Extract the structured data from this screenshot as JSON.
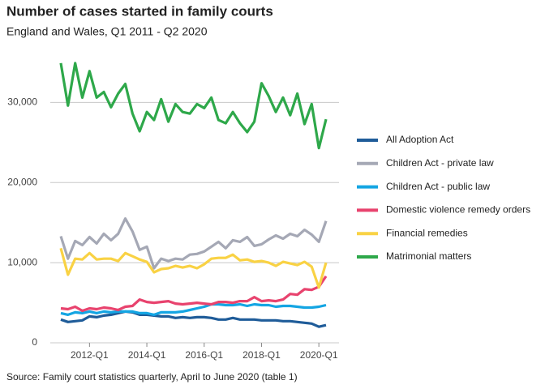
{
  "chart_data": {
    "type": "line",
    "title": "Number of cases started in family courts",
    "subtitle": "England and Wales, Q1 2011 - Q2 2020",
    "source": "Source: Family court statistics quarterly, April to June 2020 (table 1)",
    "categories": [
      null,
      null,
      null,
      null,
      "2012-Q1",
      null,
      null,
      null,
      null,
      null,
      null,
      null,
      "2014-Q1",
      null,
      null,
      null,
      null,
      null,
      null,
      null,
      "2016-Q1",
      null,
      null,
      null,
      null,
      null,
      null,
      null,
      "2018-Q1",
      null,
      null,
      null,
      null,
      null,
      null,
      null,
      "2020-Q1",
      null
    ],
    "ylim": [
      0,
      35500
    ],
    "yticks": [
      0,
      {
        "value": 10000,
        "label": "10,000"
      },
      {
        "value": 20000,
        "label": "20,000"
      },
      {
        "value": 30000,
        "label": "30,000"
      }
    ],
    "grid": true,
    "legend": "right",
    "series": [
      {
        "name": "All Adoption Act",
        "color": "#1f5c99",
        "values": [
          2900,
          2600,
          2700,
          2800,
          3300,
          3200,
          3400,
          3500,
          3700,
          3900,
          3800,
          3500,
          3500,
          3400,
          3300,
          3300,
          3100,
          3200,
          3100,
          3200,
          3200,
          3100,
          2900,
          2900,
          3100,
          2900,
          2900,
          2900,
          2800,
          2800,
          2800,
          2700,
          2700,
          2600,
          2500,
          2400,
          2000,
          2200
        ]
      },
      {
        "name": "Children Act - private law",
        "color": "#a5a8b5",
        "values": [
          13300,
          10500,
          12700,
          12200,
          13200,
          12400,
          13600,
          12800,
          13600,
          15500,
          13900,
          11600,
          12000,
          9300,
          10500,
          10200,
          10500,
          10400,
          11000,
          11100,
          11400,
          12000,
          12600,
          11800,
          12800,
          12600,
          13200,
          12100,
          12300,
          12900,
          13400,
          13000,
          13600,
          13300,
          14100,
          13500,
          12600,
          15200
        ]
      },
      {
        "name": "Children Act - public law",
        "color": "#14a5e3",
        "values": [
          3700,
          3500,
          3800,
          3700,
          3900,
          3700,
          3900,
          3800,
          3900,
          3900,
          3900,
          3700,
          3700,
          3500,
          3800,
          3800,
          3800,
          3900,
          4100,
          4300,
          4500,
          4800,
          4800,
          4700,
          4700,
          4800,
          4600,
          4800,
          4700,
          4700,
          4500,
          4600,
          4600,
          4500,
          4400,
          4400,
          4500,
          4700
        ]
      },
      {
        "name": "Domestic violence remedy orders",
        "color": "#e8436e",
        "values": [
          4300,
          4200,
          4500,
          4000,
          4300,
          4200,
          4400,
          4300,
          4100,
          4500,
          4600,
          5400,
          5100,
          5000,
          5100,
          5200,
          4900,
          4800,
          4900,
          5000,
          4900,
          4800,
          5100,
          5100,
          5000,
          5200,
          5200,
          5700,
          5200,
          5300,
          5200,
          5400,
          6100,
          6000,
          6700,
          6600,
          7000,
          8300
        ]
      },
      {
        "name": "Financial remedies",
        "color": "#f9d244",
        "values": [
          11800,
          8500,
          10500,
          10400,
          11200,
          10400,
          10500,
          10500,
          10200,
          11200,
          10800,
          10400,
          10100,
          8800,
          9200,
          9300,
          9600,
          9400,
          9600,
          9300,
          9800,
          10500,
          10600,
          10600,
          11000,
          10300,
          10400,
          10100,
          10200,
          10000,
          9600,
          10100,
          9900,
          9700,
          10100,
          9500,
          6900,
          10000
        ]
      },
      {
        "name": "Matrimonial matters",
        "color": "#2ea84a",
        "values": [
          34900,
          29600,
          34900,
          30600,
          33900,
          30600,
          31300,
          29400,
          31100,
          32300,
          28600,
          26400,
          28800,
          27800,
          30400,
          27600,
          29800,
          28800,
          28600,
          29800,
          29300,
          30600,
          27800,
          27400,
          28800,
          27400,
          26300,
          27600,
          32400,
          30800,
          28800,
          30600,
          28400,
          31100,
          27300,
          29800,
          24300,
          27900
        ]
      }
    ]
  }
}
